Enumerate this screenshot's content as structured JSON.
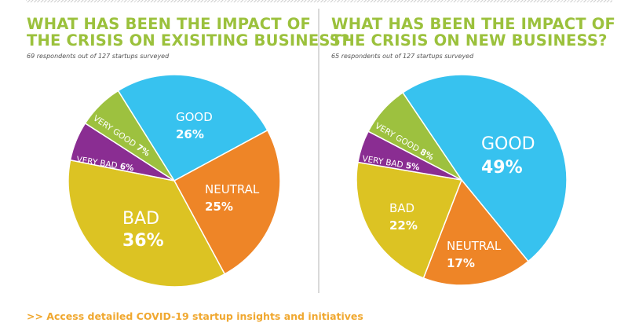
{
  "footer": {
    "link_text": ">> Access detailed COVID-19 startup insights and initiatives",
    "color": "#f0a830"
  },
  "colors": {
    "title": "#9bc13c",
    "GOOD": "#37c2ef",
    "NEUTRAL": "#ee8527",
    "BAD": "#dcc323",
    "VERY BAD": "#8a2d92",
    "VERY GOOD": "#9dc13f"
  },
  "chart_data": [
    {
      "type": "pie",
      "title_line1": "WHAT HAS BEEN THE IMPACT OF",
      "title_line2": "THE CRISIS ON EXISITING BUSINESS?",
      "subtitle": "69 respondents out of 127 startups surveyed",
      "start_angle_deg": 328,
      "slices": [
        {
          "label": "GOOD",
          "value": 26,
          "display": "26%"
        },
        {
          "label": "NEUTRAL",
          "value": 25,
          "display": "25%"
        },
        {
          "label": "BAD",
          "value": 36,
          "display": "36%"
        },
        {
          "label": "VERY BAD",
          "value": 6,
          "display": "6%"
        },
        {
          "label": "VERY GOOD",
          "value": 7,
          "display": "7%"
        }
      ]
    },
    {
      "type": "pie",
      "title_line1": "WHAT HAS BEEN THE IMPACT OF",
      "title_line2": "THE CRISIS ON NEW BUSINESS?",
      "subtitle": "65 respondents out of 127 startups surveyed",
      "start_angle_deg": 326,
      "slices": [
        {
          "label": "GOOD",
          "value": 49,
          "display": "49%"
        },
        {
          "label": "NEUTRAL",
          "value": 17,
          "display": "17%"
        },
        {
          "label": "BAD",
          "value": 22,
          "display": "22%"
        },
        {
          "label": "VERY BAD",
          "value": 5,
          "display": "5%"
        },
        {
          "label": "VERY GOOD",
          "value": 8,
          "display": "8%"
        }
      ]
    }
  ]
}
